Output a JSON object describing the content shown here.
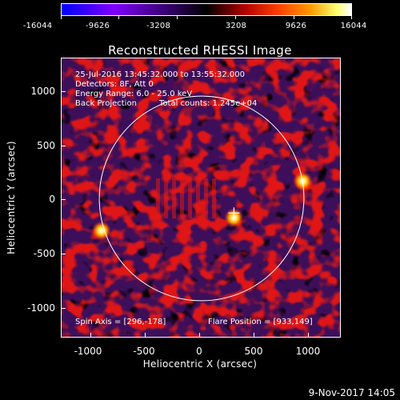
{
  "colorbar": {
    "ticks": [
      "-16044",
      "-9626",
      "-3208",
      "3208",
      "9626",
      "16044"
    ]
  },
  "title": "Reconstructed RHESSI Image",
  "info": {
    "time_range": "25-Jul-2016 13:45:32.000 to 13:55:32.000",
    "detectors": "Detectors: 8F, Att 0",
    "energy": "Energy Range: 6.0 - 25.0 keV",
    "method": "Back Projection",
    "counts": "Total counts: 1.245e+04"
  },
  "footer": {
    "spin_axis": "Spin Axis = [296,-178]",
    "flare_position": "Flare Position = [933,149]"
  },
  "axes": {
    "xlabel": "Heliocentric X (arcsec)",
    "ylabel": "Heliocentric Y (arcsec)",
    "xticks": [
      "-1000",
      "-500",
      "0",
      "500",
      "1000"
    ],
    "yticks": [
      "1000",
      "500",
      "0",
      "-500",
      "-1000"
    ]
  },
  "image": {
    "xrange": [
      -1300,
      1300
    ],
    "yrange": [
      -1300,
      1300
    ],
    "solar_radius": 950,
    "bright_sources": [
      {
        "x": 940,
        "y": 160
      },
      {
        "x": 300,
        "y": -180
      },
      {
        "x": -930,
        "y": -300
      }
    ],
    "colors": {
      "limb": "#ffffff",
      "background": "#000000"
    }
  },
  "timestamp": "9-Nov-2017 14:05"
}
